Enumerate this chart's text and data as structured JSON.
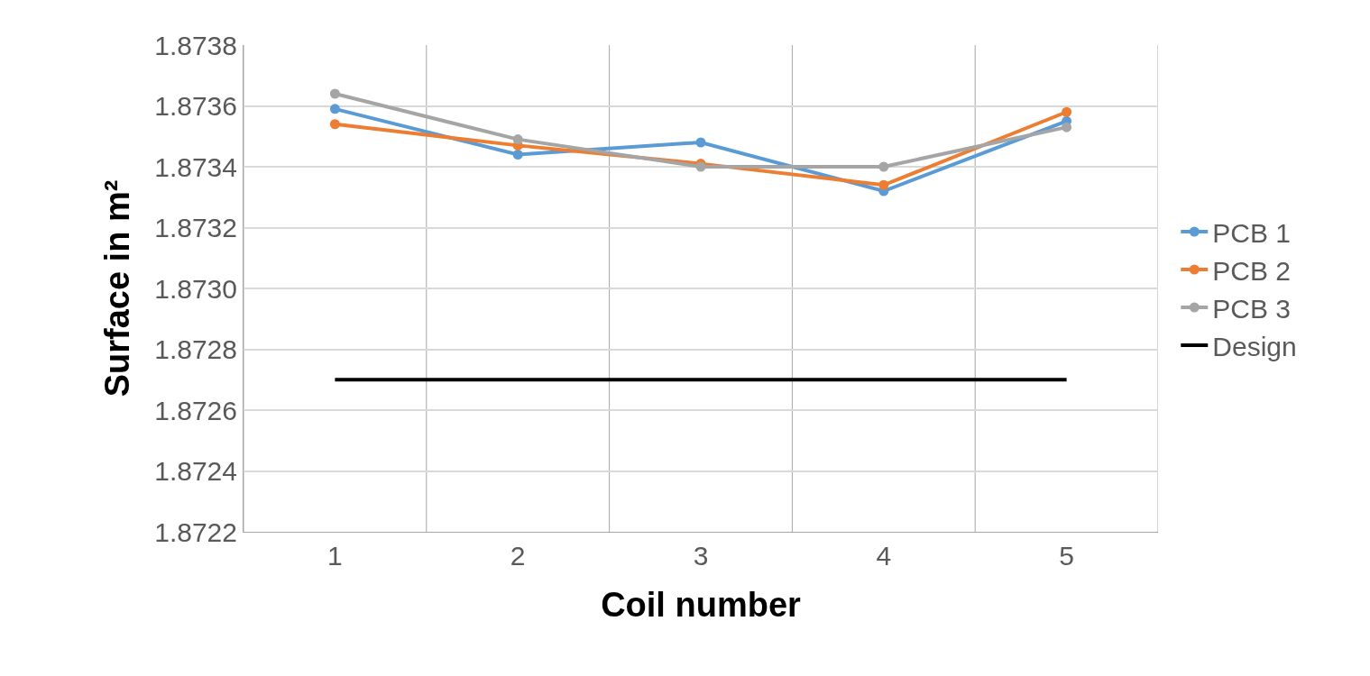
{
  "chart_data": {
    "type": "line",
    "xlabel": "Coil number",
    "ylabel": "Surface in m²",
    "categories": [
      "1",
      "2",
      "3",
      "4",
      "5"
    ],
    "series": [
      {
        "name": "PCB 1",
        "color": "#5b9bd5",
        "values": [
          1.87359,
          1.87344,
          1.87348,
          1.87332,
          1.87355
        ]
      },
      {
        "name": "PCB 2",
        "color": "#ed7d31",
        "values": [
          1.87354,
          1.87347,
          1.87341,
          1.87334,
          1.87358
        ]
      },
      {
        "name": "PCB 3",
        "color": "#a5a5a5",
        "values": [
          1.87364,
          1.87349,
          1.8734,
          1.8734,
          1.87353
        ]
      },
      {
        "name": "Design",
        "color": "#000000",
        "marker": "none",
        "values": [
          1.8727,
          1.8727,
          1.8727,
          1.8727,
          1.8727
        ]
      }
    ],
    "ylim": [
      1.8722,
      1.8738
    ],
    "yticks": [
      1.8722,
      1.8724,
      1.8726,
      1.8728,
      {
        "value": 1.873,
        "label": "1.8730"
      },
      1.8732,
      1.8734,
      1.8736,
      1.8738
    ],
    "grid": true,
    "legend": "right",
    "marker": "circle"
  }
}
